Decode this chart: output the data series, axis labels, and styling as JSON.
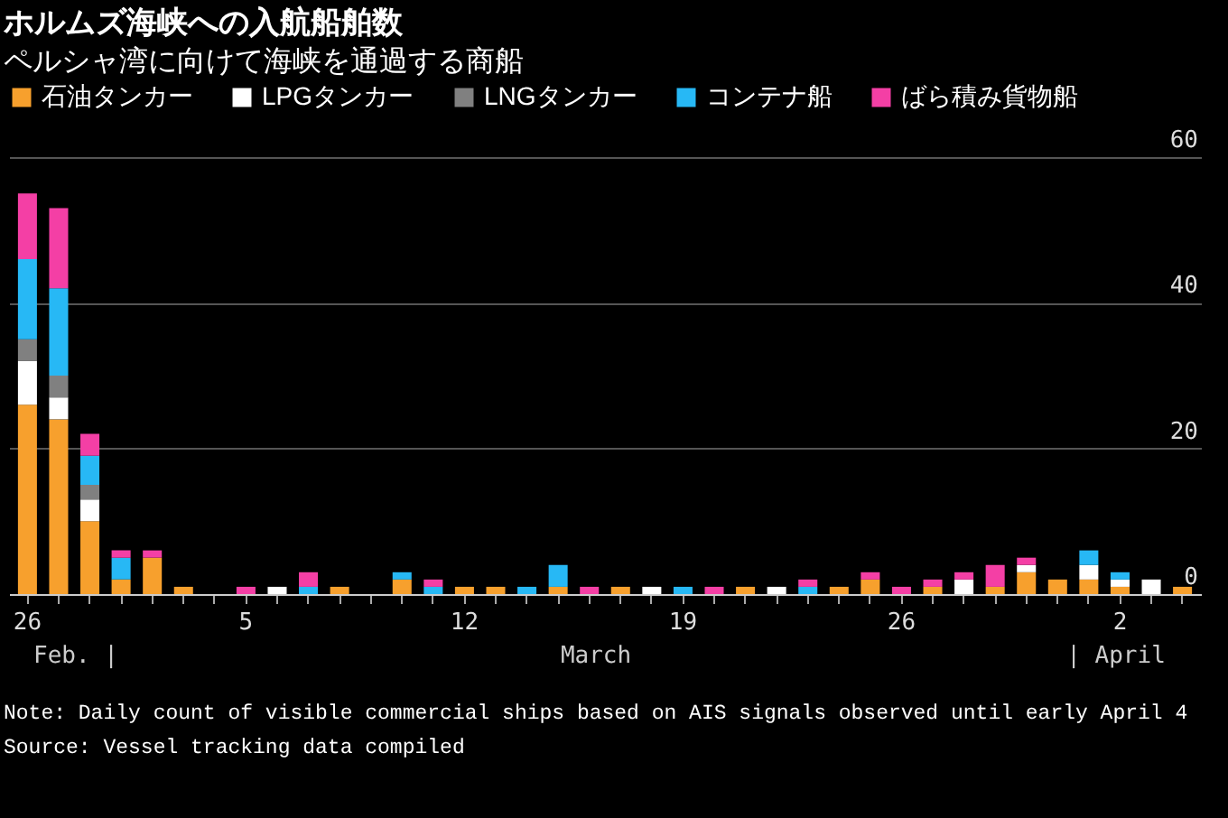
{
  "chart_data": {
    "type": "bar",
    "title": "ホルムズ海峡への入航船舶数",
    "subtitle": "ペルシャ湾に向けて海峡を通過する商船",
    "categories": [
      "26",
      null,
      null,
      null,
      null,
      null,
      null,
      "5",
      null,
      null,
      null,
      null,
      null,
      null,
      "12",
      null,
      null,
      null,
      null,
      null,
      null,
      "19",
      null,
      null,
      null,
      null,
      null,
      null,
      "26",
      null,
      null,
      null,
      null,
      null,
      null,
      "2",
      null,
      null
    ],
    "stacked": true,
    "series": [
      {
        "name": "石油タンカー",
        "color": "#f7a02d",
        "values": [
          26,
          24,
          10,
          2,
          5,
          1,
          0,
          0,
          0,
          0,
          1,
          0,
          2,
          0,
          1,
          1,
          0,
          1,
          0,
          1,
          0,
          0,
          0,
          1,
          0,
          0,
          1,
          2,
          0,
          1,
          0,
          1,
          3,
          2,
          2,
          1,
          0,
          1
        ]
      },
      {
        "name": "LPGタンカー",
        "color": "#ffffff",
        "values": [
          6,
          3,
          3,
          0,
          0,
          0,
          0,
          0,
          1,
          0,
          0,
          0,
          0,
          0,
          0,
          0,
          0,
          0,
          0,
          0,
          1,
          0,
          0,
          0,
          1,
          0,
          0,
          0,
          0,
          0,
          2,
          0,
          1,
          0,
          2,
          1,
          2,
          0
        ]
      },
      {
        "name": "LNGタンカー",
        "color": "#808080",
        "values": [
          3,
          3,
          2,
          0,
          0,
          0,
          0,
          0,
          0,
          0,
          0,
          0,
          0,
          0,
          0,
          0,
          0,
          0,
          0,
          0,
          0,
          0,
          0,
          0,
          0,
          0,
          0,
          0,
          0,
          0,
          0,
          0,
          0,
          0,
          0,
          0,
          0,
          0
        ]
      },
      {
        "name": "コンテナ船",
        "color": "#27b8f5",
        "values": [
          11,
          12,
          4,
          3,
          0,
          0,
          0,
          0,
          0,
          1,
          0,
          0,
          1,
          1,
          0,
          0,
          1,
          3,
          0,
          0,
          0,
          1,
          0,
          0,
          0,
          1,
          0,
          0,
          0,
          0,
          0,
          0,
          0,
          0,
          2,
          1,
          0,
          0
        ]
      },
      {
        "name": "ばら積み貨物船",
        "color": "#f43fa5",
        "values": [
          9,
          11,
          3,
          1,
          1,
          0,
          0,
          1,
          0,
          2,
          0,
          0,
          0,
          1,
          0,
          0,
          0,
          0,
          1,
          0,
          0,
          0,
          1,
          0,
          0,
          1,
          0,
          1,
          1,
          1,
          1,
          3,
          1,
          0,
          0,
          0,
          0,
          0
        ]
      }
    ],
    "ylim": [
      0,
      60
    ],
    "yticks": [
      0,
      20,
      40,
      60
    ],
    "grid": "y",
    "legend": "top",
    "annotations": [
      "Feb. |",
      "March",
      "| April",
      "Note: Daily count of visible commercial ships based on AIS signals observed until early April 4",
      "Source: Vessel tracking data compiled"
    ]
  }
}
